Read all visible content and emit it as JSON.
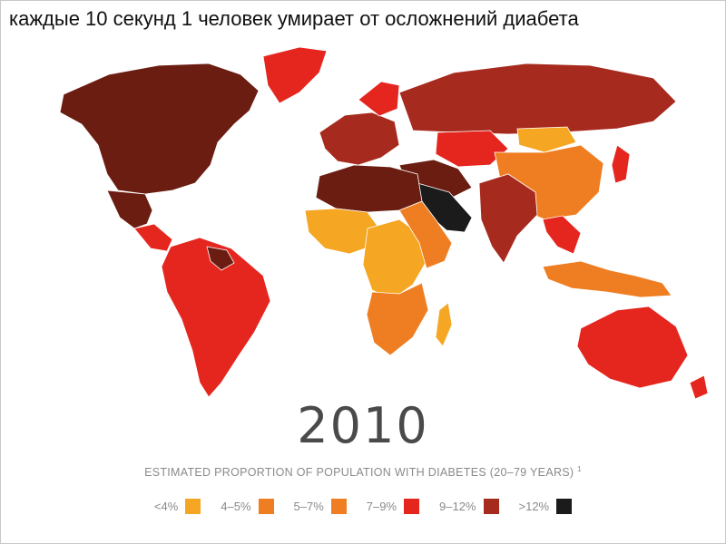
{
  "caption": "каждые 10 секунд  1 человек умирает от осложнений диабета",
  "year": "2010",
  "subtitle": "ESTIMATED PROPORTION OF POPULATION WITH DIABETES (20–79 YEARS)",
  "subtitle_note": "1",
  "legend": [
    {
      "label": "<4%",
      "color": "#f5a623"
    },
    {
      "label": "4–5%",
      "color": "#ef7e22"
    },
    {
      "label": "5–7%",
      "color": "#ef7e22"
    },
    {
      "label": "7–9%",
      "color": "#e5261f"
    },
    {
      "label": "9–12%",
      "color": "#a72a1e"
    },
    {
      "label": ">12%",
      "color": "#1b1b1b"
    }
  ],
  "region_colors": {
    "north_america": "#6b1d12",
    "greenland": "#e5261f",
    "mexico": "#6b1d12",
    "central_america": "#e5261f",
    "south_america": "#e5261f",
    "guiana": "#6b1d12",
    "europe_west": "#a72a1e",
    "europe_north": "#e5261f",
    "russia": "#a72a1e",
    "central_asia": "#e5261f",
    "china": "#ef7e22",
    "mongolia": "#f5a623",
    "india": "#a72a1e",
    "arabia": "#1b1b1b",
    "middle_east": "#6b1d12",
    "north_africa": "#6b1d12",
    "west_africa": "#f5a623",
    "central_africa": "#f5a623",
    "east_africa": "#ef7e22",
    "southern_africa": "#ef7e22",
    "madagascar": "#f5a623",
    "southeast_asia": "#e5261f",
    "indonesia": "#ef7e22",
    "japan": "#e5261f",
    "australia": "#e5261f",
    "new_zealand": "#e5261f"
  }
}
